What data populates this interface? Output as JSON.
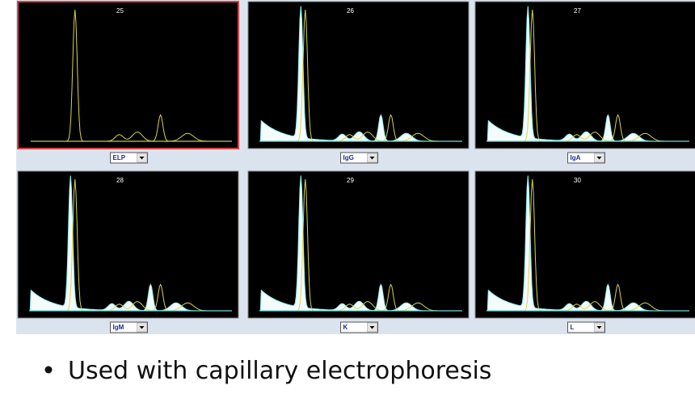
{
  "panels": [
    {
      "number": "25",
      "selector": "ELP"
    },
    {
      "number": "26",
      "selector": "IgG"
    },
    {
      "number": "27",
      "selector": "IgA"
    },
    {
      "number": "28",
      "selector": "IgM"
    },
    {
      "number": "29",
      "selector": "K"
    },
    {
      "number": "30",
      "selector": "L"
    }
  ],
  "bullet": "Used with capillary electrophoresis"
}
